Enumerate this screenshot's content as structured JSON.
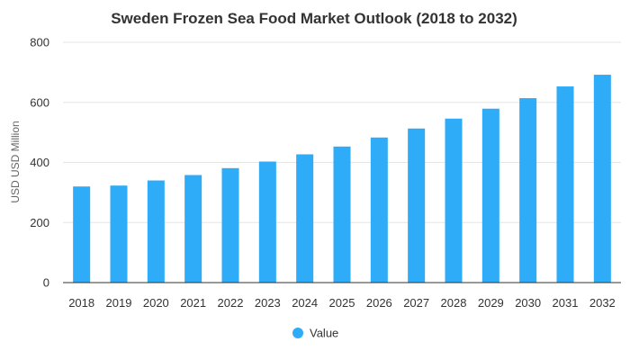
{
  "chart_data": {
    "type": "bar",
    "title": "Sweden Frozen Sea Food Market Outlook (2018 to 2032)",
    "xlabel": "",
    "ylabel": "USD USD Million",
    "ylim": [
      0,
      800
    ],
    "yticks": [
      0,
      200,
      400,
      600,
      800
    ],
    "grid": true,
    "legend_position": "bottom",
    "categories": [
      "2018",
      "2019",
      "2020",
      "2021",
      "2022",
      "2023",
      "2024",
      "2025",
      "2026",
      "2027",
      "2028",
      "2029",
      "2030",
      "2031",
      "2032"
    ],
    "series": [
      {
        "name": "Value",
        "color": "#2eacf7",
        "values": [
          320,
          323,
          340,
          358,
          381,
          403,
          427,
          453,
          483,
          513,
          546,
          579,
          614,
          653,
          692
        ]
      }
    ]
  }
}
